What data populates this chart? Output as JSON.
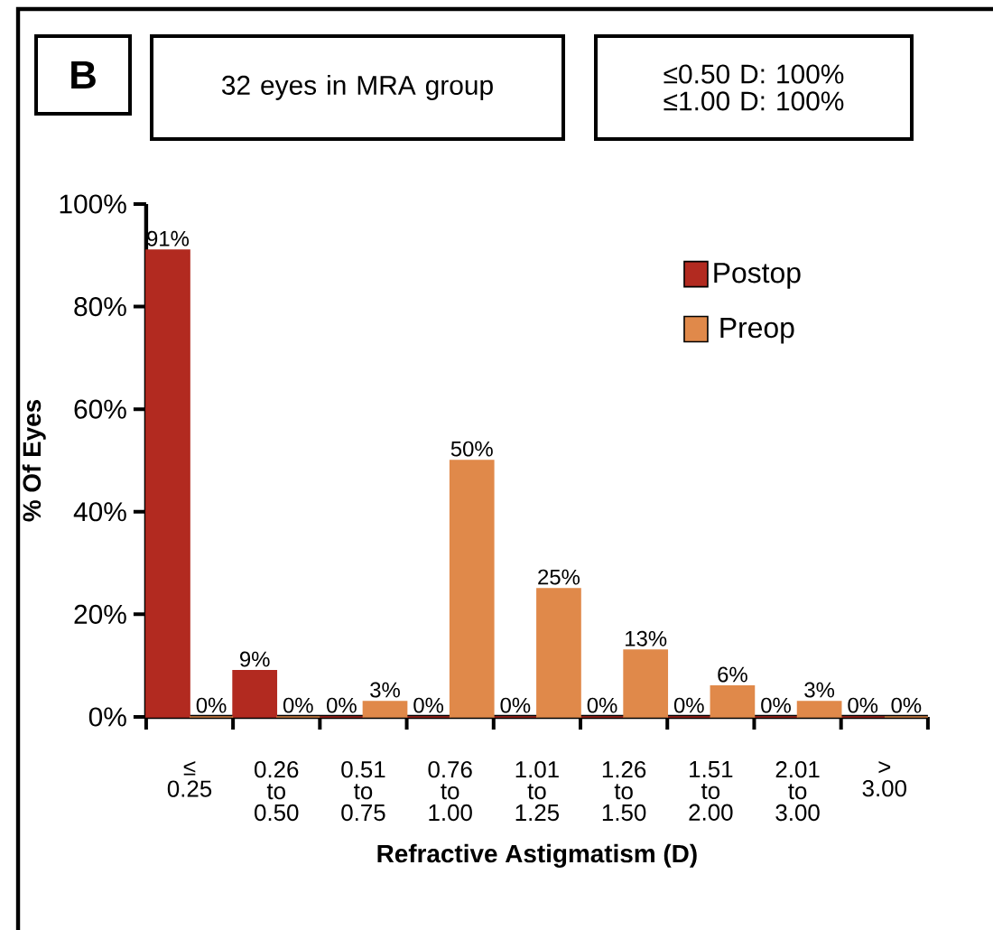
{
  "chart_data": {
    "type": "bar",
    "xlabel": "Refractive Astigmatism (D)",
    "ylabel": "% Of Eyes",
    "annotations": [
      "B",
      "32 eyes in MRA group",
      "≤0.50 D: 100%",
      "≤1.00 D: 100%"
    ],
    "categories": [
      "≤ 0.25",
      "0.26 to 0.50",
      "0.51 to 0.75",
      "0.76 to 1.00",
      "1.01 to 1.25",
      "1.26 to 1.50",
      "1.51 to 2.00",
      "2.01 to 3.00",
      "> 3.00"
    ],
    "series": [
      {
        "name": "Postop",
        "color": "#b22a20",
        "values": [
          91,
          9,
          0,
          0,
          0,
          0,
          0,
          0,
          0
        ],
        "value_labels": [
          "91%",
          "9%",
          "0%",
          "0%",
          "0%",
          "0%",
          "0%",
          "0%",
          "0%"
        ]
      },
      {
        "name": "Preop",
        "color": "#e0894a",
        "values": [
          0,
          0,
          3,
          50,
          25,
          13,
          6,
          3,
          0
        ],
        "value_labels": [
          "0%",
          "0%",
          "3%",
          "50%",
          "25%",
          "13%",
          "6%",
          "3%",
          "0%"
        ]
      }
    ],
    "ylim": [
      0,
      100
    ],
    "yticks": [
      {
        "value": 0,
        "label": "0%"
      },
      {
        "value": 20,
        "label": "20%"
      },
      {
        "value": 40,
        "label": "40%"
      },
      {
        "value": 60,
        "label": "60%"
      },
      {
        "value": 80,
        "label": "80%"
      },
      {
        "value": 100,
        "label": "100%"
      }
    ],
    "legend": "top right"
  }
}
